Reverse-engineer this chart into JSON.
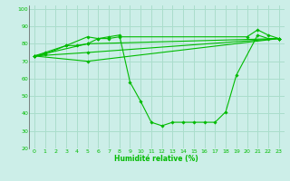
{
  "title": "",
  "xlabel": "Humidité relative (%)",
  "ylabel": "",
  "background_color": "#cceee8",
  "grid_color": "#aaddcc",
  "line_color": "#00bb00",
  "xlim": [
    -0.5,
    23.5
  ],
  "ylim": [
    20,
    102
  ],
  "yticks": [
    20,
    30,
    40,
    50,
    60,
    70,
    80,
    90,
    100
  ],
  "xticks": [
    0,
    1,
    2,
    3,
    4,
    5,
    6,
    7,
    8,
    9,
    10,
    11,
    12,
    13,
    14,
    15,
    16,
    17,
    18,
    19,
    20,
    21,
    22,
    23
  ],
  "series": [
    [
      73,
      75,
      null,
      79,
      null,
      84,
      83,
      84,
      85,
      58,
      47,
      35,
      33,
      35,
      35,
      35,
      35,
      35,
      41,
      62,
      null,
      85,
      83,
      83
    ],
    [
      73,
      74,
      null,
      79,
      79,
      80,
      83,
      83,
      84,
      null,
      null,
      null,
      null,
      null,
      null,
      null,
      null,
      null,
      null,
      null,
      84,
      88,
      85,
      83
    ],
    [
      73,
      null,
      null,
      null,
      null,
      80,
      null,
      null,
      null,
      null,
      null,
      null,
      null,
      null,
      null,
      null,
      null,
      null,
      null,
      null,
      null,
      null,
      null,
      83
    ],
    [
      73,
      null,
      null,
      null,
      null,
      75,
      null,
      null,
      null,
      null,
      null,
      null,
      null,
      null,
      null,
      null,
      null,
      null,
      null,
      null,
      null,
      null,
      null,
      83
    ],
    [
      73,
      null,
      null,
      null,
      null,
      70,
      null,
      null,
      null,
      null,
      null,
      null,
      null,
      null,
      null,
      null,
      null,
      null,
      null,
      null,
      null,
      null,
      null,
      83
    ]
  ]
}
